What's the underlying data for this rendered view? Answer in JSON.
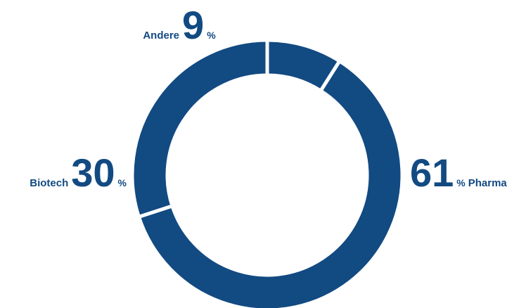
{
  "chart_data": {
    "type": "donut",
    "categories": [
      "Andere",
      "Pharma",
      "Biotech"
    ],
    "values": [
      9,
      61,
      30
    ],
    "unit": "%",
    "color": "#124a82"
  }
}
